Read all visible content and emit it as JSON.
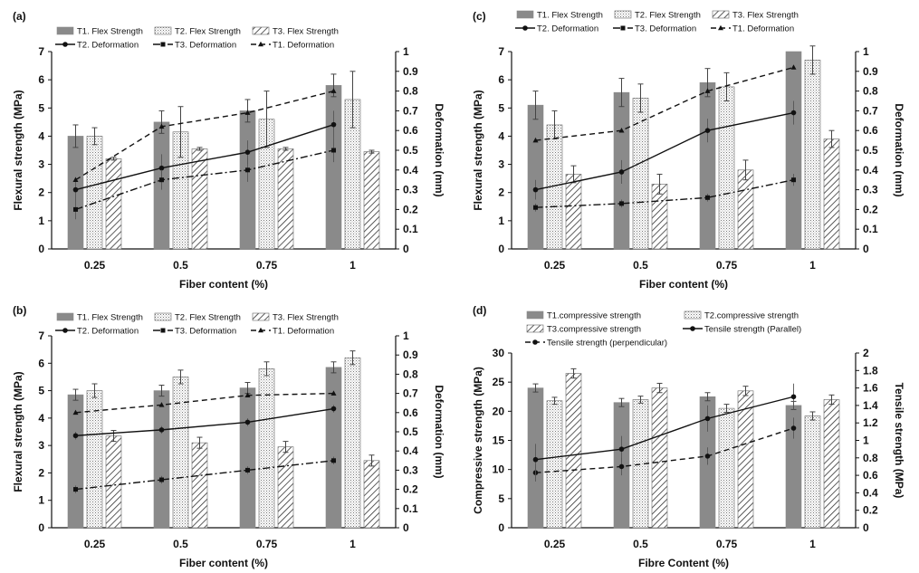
{
  "chart_data": [
    {
      "panel_label": "(a)",
      "type": "bar",
      "categories": [
        "0.25",
        "0.5",
        "0.75",
        "1"
      ],
      "xlabel": "Fiber content (%)",
      "ylabel": "Flexural strength (MPa)",
      "y2label": "Deformation (mm)",
      "ylim": [
        0,
        7
      ],
      "y2lim": [
        0,
        1
      ],
      "yticks": [
        "0",
        "1",
        "2",
        "3",
        "4",
        "5",
        "6",
        "7"
      ],
      "y2ticks": [
        "0",
        "0.1",
        "0.2",
        "0.3",
        "0.4",
        "0.5",
        "0.6",
        "0.7",
        "0.8",
        "0.9",
        "1"
      ],
      "bar_series": [
        {
          "name": "T1. Flex Strength",
          "pattern": "solid",
          "values": [
            4.0,
            4.5,
            4.9,
            5.8
          ],
          "err": [
            0.4,
            0.4,
            0.4,
            0.4
          ]
        },
        {
          "name": "T2. Flex Strength",
          "pattern": "dots",
          "values": [
            4.0,
            4.15,
            4.6,
            5.3
          ],
          "err": [
            0.3,
            0.9,
            1.0,
            1.0
          ]
        },
        {
          "name": "T3. Flex Strength",
          "pattern": "hatch",
          "values": [
            3.2,
            3.55,
            3.55,
            3.45
          ],
          "err": [
            0.05,
            0.05,
            0.05,
            0.05
          ]
        }
      ],
      "line_series": [
        {
          "name": "T2. Deformation",
          "style": "solid",
          "marker": "circle",
          "values": [
            0.3,
            0.41,
            0.49,
            0.63
          ],
          "err": [
            0.05,
            0.07,
            0.06,
            0.07
          ]
        },
        {
          "name": "T3. Deformation",
          "style": "dashdot",
          "marker": "square",
          "values": [
            0.2,
            0.35,
            0.4,
            0.5
          ],
          "err": [
            0.05,
            0.05,
            0.06,
            0.06
          ]
        },
        {
          "name": "T1. Deformation",
          "style": "dash",
          "marker": "triangle",
          "values": [
            0.35,
            0.62,
            0.69,
            0.8
          ],
          "err": [
            0,
            0,
            0,
            0
          ]
        }
      ],
      "legend_order": [
        "T1. Flex Strength",
        "T2. Flex Strength",
        "T3. Flex Strength",
        "T2. Deformation",
        "T3. Deformation",
        "T1. Deformation"
      ]
    },
    {
      "panel_label": "(c)",
      "type": "bar",
      "categories": [
        "0.25",
        "0.5",
        "0.75",
        "1"
      ],
      "xlabel": "Fiber content (%)",
      "ylabel": "Flexural strength (MPa)",
      "y2label": "Deformation (mm)",
      "ylim": [
        0,
        7
      ],
      "y2lim": [
        0,
        1
      ],
      "yticks": [
        "0",
        "1",
        "2",
        "3",
        "4",
        "5",
        "6",
        "7"
      ],
      "y2ticks": [
        "0",
        "0.1",
        "0.2",
        "0.3",
        "0.4",
        "0.5",
        "0.6",
        "0.7",
        "0.8",
        "0.9",
        "1"
      ],
      "bar_series": [
        {
          "name": "T1. Flex Strength",
          "pattern": "solid",
          "values": [
            5.1,
            5.55,
            5.9,
            7.0
          ],
          "err": [
            0.5,
            0.5,
            0.5,
            0.0
          ]
        },
        {
          "name": "T2. Flex Strength",
          "pattern": "dots",
          "values": [
            4.4,
            5.35,
            5.75,
            6.7
          ],
          "err": [
            0.5,
            0.5,
            0.5,
            0.5
          ]
        },
        {
          "name": "T3. Flex Strength",
          "pattern": "hatch",
          "values": [
            2.65,
            2.3,
            2.8,
            3.9
          ],
          "err": [
            0.3,
            0.35,
            0.35,
            0.3
          ]
        }
      ],
      "line_series": [
        {
          "name": "T2. Deformation",
          "style": "solid",
          "marker": "circle",
          "values": [
            0.3,
            0.39,
            0.6,
            0.69
          ],
          "err": [
            0.05,
            0.06,
            0.06,
            0.06
          ]
        },
        {
          "name": "T3. Deformation",
          "style": "dashdot",
          "marker": "square",
          "values": [
            0.21,
            0.23,
            0.26,
            0.35
          ],
          "err": [
            0.02,
            0.02,
            0.02,
            0.03
          ]
        },
        {
          "name": "T1. Deformation",
          "style": "dash",
          "marker": "triangle",
          "values": [
            0.55,
            0.6,
            0.8,
            0.92
          ],
          "err": [
            0,
            0,
            0,
            0
          ]
        }
      ],
      "legend_order": [
        "T1. Flex Strength",
        "T2. Flex Strength",
        "T3. Flex Strength",
        "T2. Deformation",
        "T3. Deformation",
        "T1. Deformation"
      ]
    },
    {
      "panel_label": "(b)",
      "type": "bar",
      "categories": [
        "0.25",
        "0.5",
        "0.75",
        "1"
      ],
      "xlabel": "Fiber content (%)",
      "ylabel": "Flexural strength (MPa)",
      "y2label": "Deformation (mm)",
      "ylim": [
        0,
        7
      ],
      "y2lim": [
        0,
        1
      ],
      "yticks": [
        "0",
        "1",
        "2",
        "3",
        "4",
        "5",
        "6",
        "7"
      ],
      "y2ticks": [
        "0",
        "0.1",
        "0.2",
        "0.3",
        "0.4",
        "0.5",
        "0.6",
        "0.7",
        "0.8",
        "0.9",
        "1"
      ],
      "bar_series": [
        {
          "name": "T1. Flex Strength",
          "pattern": "solid",
          "values": [
            4.85,
            5.0,
            5.1,
            5.85
          ],
          "err": [
            0.2,
            0.2,
            0.2,
            0.2
          ]
        },
        {
          "name": "T2. Flex Strength",
          "pattern": "dots",
          "values": [
            5.0,
            5.5,
            5.8,
            6.2
          ],
          "err": [
            0.25,
            0.25,
            0.25,
            0.25
          ]
        },
        {
          "name": "T3. Flex Strength",
          "pattern": "hatch",
          "values": [
            3.35,
            3.1,
            2.95,
            2.45
          ],
          "err": [
            0.2,
            0.2,
            0.2,
            0.2
          ]
        }
      ],
      "line_series": [
        {
          "name": "T2. Deformation",
          "style": "solid",
          "marker": "circle",
          "values": [
            0.48,
            0.51,
            0.55,
            0.62
          ],
          "err": [
            0.02,
            0.02,
            0.02,
            0.02
          ]
        },
        {
          "name": "T3. Deformation",
          "style": "dashdot",
          "marker": "square",
          "values": [
            0.2,
            0.25,
            0.3,
            0.35
          ],
          "err": [
            0.02,
            0.02,
            0.02,
            0.02
          ]
        },
        {
          "name": "T1. Deformation",
          "style": "dash",
          "marker": "triangle",
          "values": [
            0.6,
            0.64,
            0.69,
            0.7
          ],
          "err": [
            0,
            0,
            0,
            0
          ]
        }
      ],
      "legend_order": [
        "T1. Flex Strength",
        "T2. Flex Strength",
        "T3. Flex Strength",
        "T2. Deformation",
        "T3. Deformation",
        "T1. Deformation"
      ]
    },
    {
      "panel_label": "(d)",
      "type": "bar",
      "categories": [
        "0.25",
        "0.5",
        "0.75",
        "1"
      ],
      "xlabel": "Fibre Content (%)",
      "ylabel": "Compressive strength (MPa)",
      "y2label": "Tensile strength (MPa)",
      "ylim": [
        0,
        30
      ],
      "y2lim": [
        0,
        2
      ],
      "yticks": [
        "0",
        "5",
        "10",
        "15",
        "20",
        "25",
        "30"
      ],
      "y2ticks": [
        "0",
        "0.2",
        "0.4",
        "0.6",
        "0.8",
        "1",
        "1.2",
        "1.4",
        "1.6",
        "1.8",
        "2"
      ],
      "bar_series": [
        {
          "name": "T1.compressive strength",
          "pattern": "solid",
          "values": [
            24.0,
            21.5,
            22.5,
            21.0
          ],
          "err": [
            0.7,
            0.7,
            0.7,
            0.7
          ]
        },
        {
          "name": "T2.compressive strength",
          "pattern": "dots",
          "values": [
            21.8,
            22.0,
            20.5,
            19.2
          ],
          "err": [
            0.6,
            0.6,
            0.7,
            0.7
          ]
        },
        {
          "name": "T3.compressive strength",
          "pattern": "hatch",
          "values": [
            26.5,
            24.0,
            23.5,
            22.0
          ],
          "err": [
            0.8,
            0.8,
            0.8,
            0.8
          ]
        }
      ],
      "line_series": [
        {
          "name": "Tensile strength (perpendicular)",
          "style": "dash",
          "marker": "circle",
          "values": [
            0.63,
            0.7,
            0.82,
            1.14
          ],
          "err": [
            0.1,
            0.1,
            0.1,
            0.12
          ]
        },
        {
          "name": "Tensile strength (Parallel)",
          "style": "solid",
          "marker": "circle",
          "values": [
            0.78,
            0.9,
            1.25,
            1.5
          ],
          "err": [
            0.18,
            0.15,
            0.15,
            0.15
          ]
        }
      ],
      "legend_order": [
        "T1.compressive strength",
        "T2.compressive strength",
        "T3.compressive strength",
        "Tensile strength (Parallel)",
        "Tensile strength (perpendicular)"
      ]
    }
  ]
}
